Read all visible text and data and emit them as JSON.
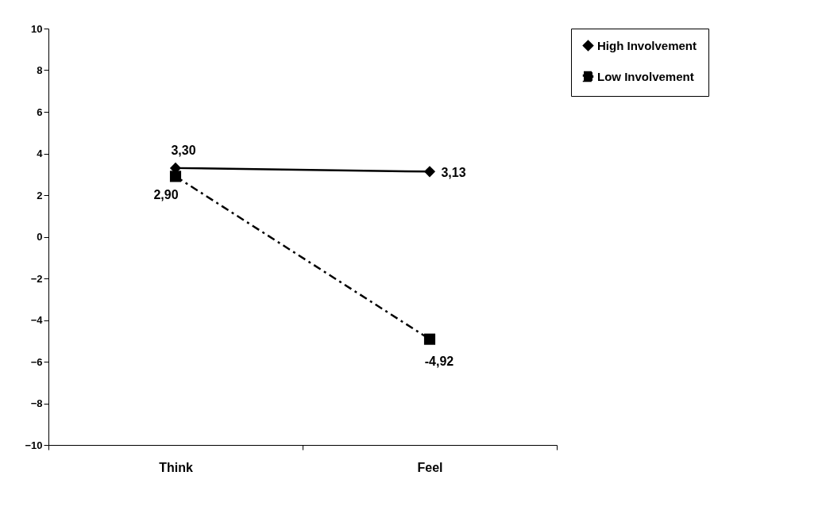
{
  "chart_data": {
    "type": "line",
    "categories": [
      "Think",
      "Feel"
    ],
    "series": [
      {
        "name": "High Involvement",
        "color": "#000000",
        "marker": "diamond",
        "line_style": "solid",
        "values": [
          3.3,
          3.13
        ],
        "value_labels": [
          "3,30",
          "3,13"
        ]
      },
      {
        "name": "Low Involvement",
        "color": "#000000",
        "marker": "square",
        "line_style": "dashed",
        "values": [
          2.9,
          -4.92
        ],
        "value_labels": [
          "2,90",
          "-4,92"
        ]
      }
    ],
    "ylim": [
      -10,
      10
    ],
    "yticks": [
      -10,
      -8,
      -6,
      -4,
      -2,
      0,
      2,
      4,
      6,
      8,
      10
    ],
    "grid": false,
    "legend": "right"
  }
}
